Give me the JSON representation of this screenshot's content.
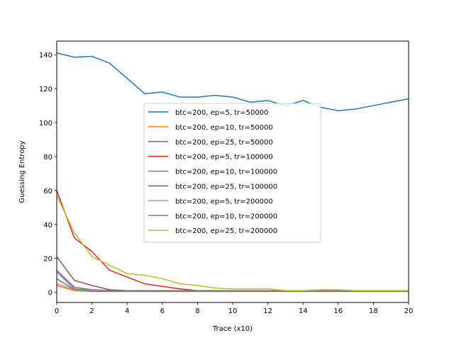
{
  "chart_data": {
    "type": "line",
    "title": "",
    "xlabel": "Trace (x10)",
    "ylabel": "Guessing Entropy",
    "xlim": [
      0,
      20
    ],
    "ylim": [
      -6,
      148
    ],
    "xticks": [
      0,
      2,
      4,
      6,
      8,
      10,
      12,
      14,
      16,
      18,
      20
    ],
    "yticks": [
      0,
      20,
      40,
      60,
      80,
      100,
      120,
      140
    ],
    "grid": false,
    "legend_position": "center-right",
    "x": [
      0,
      1,
      2,
      3,
      4,
      5,
      6,
      7,
      8,
      9,
      10,
      11,
      12,
      13,
      14,
      15,
      16,
      17,
      18,
      19,
      20
    ],
    "series": [
      {
        "name": "btc=200, ep=5, tr=50000",
        "color": "#1f77b4",
        "values": [
          141,
          138.5,
          139,
          135,
          126,
          117,
          118,
          115,
          115,
          116,
          115,
          112,
          113,
          110,
          113,
          109,
          107,
          108,
          110,
          112,
          114
        ]
      },
      {
        "name": "btc=200, ep=10, tr=50000",
        "color": "#ff7f0e",
        "values": [
          4,
          1,
          0.5,
          0.5,
          0.5,
          0.5,
          0.5,
          0.5,
          0.5,
          0.5,
          0.5,
          0.5,
          0.5,
          0.5,
          0.5,
          0.5,
          0.5,
          0.5,
          0.5,
          0.5,
          0.5
        ]
      },
      {
        "name": "btc=200, ep=25, tr=50000",
        "color": "#2ca02c",
        "values": [
          8,
          1.5,
          0.5,
          0.5,
          0.5,
          0.5,
          0.5,
          0.5,
          0.5,
          0.5,
          0.5,
          0.5,
          0.5,
          0.5,
          0.5,
          0.5,
          0.5,
          0.5,
          0.5,
          0.5,
          0.5
        ]
      },
      {
        "name": "btc=200, ep=5, tr=100000",
        "color": "#d62728",
        "values": [
          60,
          32,
          24,
          13,
          9,
          5,
          3.5,
          2,
          1,
          1,
          1,
          1,
          1,
          1,
          1,
          1,
          1,
          1,
          1,
          1,
          1
        ]
      },
      {
        "name": "btc=200, ep=10, tr=100000",
        "color": "#9467bd",
        "values": [
          13,
          3,
          1.5,
          1,
          0.8,
          0.8,
          0.8,
          0.8,
          0.8,
          0.8,
          0.8,
          0.8,
          0.8,
          0.8,
          0.8,
          0.8,
          0.8,
          0.8,
          0.8,
          0.8,
          0.8
        ]
      },
      {
        "name": "btc=200, ep=25, tr=100000",
        "color": "#8c564b",
        "values": [
          21,
          7,
          4,
          1.5,
          1,
          1,
          1,
          1,
          1,
          1,
          1,
          1,
          1,
          1,
          1,
          1,
          1,
          1,
          1,
          1,
          1
        ]
      },
      {
        "name": "btc=200, ep=5, tr=200000",
        "color": "#e377c2",
        "values": [
          5,
          1.5,
          1,
          1,
          1,
          1,
          1,
          1,
          1,
          1,
          1,
          1,
          1,
          1,
          1,
          1,
          1,
          1,
          1,
          1,
          1
        ]
      },
      {
        "name": "btc=200, ep=10, tr=200000",
        "color": "#7f7f7f",
        "values": [
          12,
          2,
          1.5,
          1,
          1,
          1,
          1,
          1,
          1,
          1,
          1,
          1,
          1,
          1,
          1,
          1,
          1,
          1,
          1,
          1,
          1
        ]
      },
      {
        "name": "btc=200, ep=25, tr=200000",
        "color": "#bcbd22",
        "values": [
          57,
          35,
          21,
          16,
          11,
          10,
          8,
          5,
          4,
          2.5,
          2,
          2,
          2,
          1,
          1,
          1.5,
          1.5,
          1,
          1,
          1,
          1
        ]
      }
    ]
  }
}
